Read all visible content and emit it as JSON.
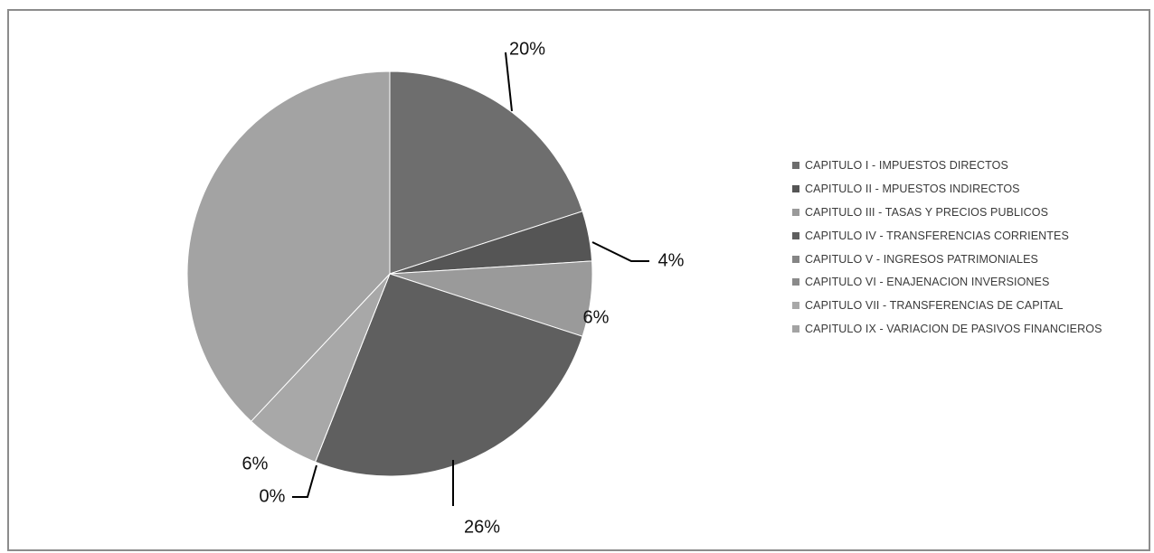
{
  "chart_data": {
    "type": "pie",
    "categories": [
      "CAPITULO I - IMPUESTOS DIRECTOS",
      "CAPITULO II - MPUESTOS INDIRECTOS",
      "CAPITULO III - TASAS Y PRECIOS PUBLICOS",
      "CAPITULO IV - TRANSFERENCIAS CORRIENTES",
      "CAPITULO V - INGRESOS PATRIMONIALES",
      "CAPITULO VI - ENAJENACION INVERSIONES",
      "CAPITULO VII - TRANSFERENCIAS DE CAPITAL",
      "CAPITULO IX - VARIACION DE PASIVOS FINANCIEROS"
    ],
    "values": [
      20,
      4,
      6,
      26,
      0,
      0,
      6,
      38
    ],
    "data_labels": [
      "20%",
      "4%",
      "6%",
      "26%",
      "0%",
      "",
      "6%",
      ""
    ],
    "colors": [
      "#6e6e6e",
      "#555555",
      "#9a9a9a",
      "#5f5f5f",
      "#858585",
      "#8a8a8a",
      "#a8a8a8",
      "#a3a3a3"
    ],
    "legend_position": "right"
  }
}
